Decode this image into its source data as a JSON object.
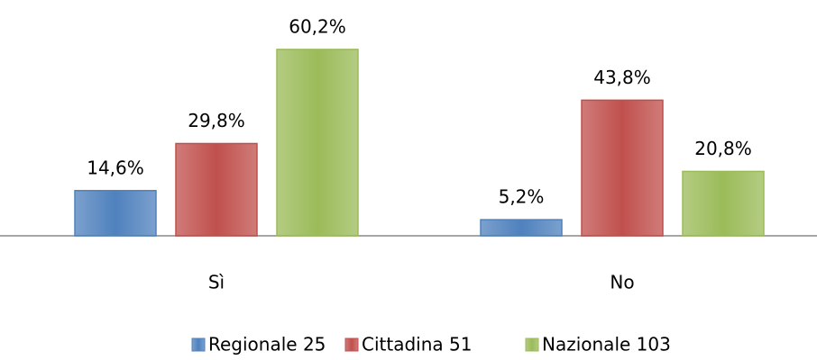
{
  "chart_data": {
    "type": "bar",
    "categories": [
      "Sì",
      "No"
    ],
    "series": [
      {
        "name": "Regionale 25",
        "color": "#4f81bd",
        "values": [
          14.6,
          5.2
        ],
        "value_labels": [
          "14,6%",
          "5,2%"
        ]
      },
      {
        "name": "Cittadina 51",
        "color": "#c0504d",
        "values": [
          29.8,
          43.8
        ],
        "value_labels": [
          "29,8%",
          "43,8%"
        ]
      },
      {
        "name": "Nazionale 103",
        "color": "#9bbb59",
        "values": [
          60.2,
          20.8
        ],
        "value_labels": [
          "60,2%",
          "20,8%"
        ]
      }
    ],
    "legend": "bottom"
  }
}
